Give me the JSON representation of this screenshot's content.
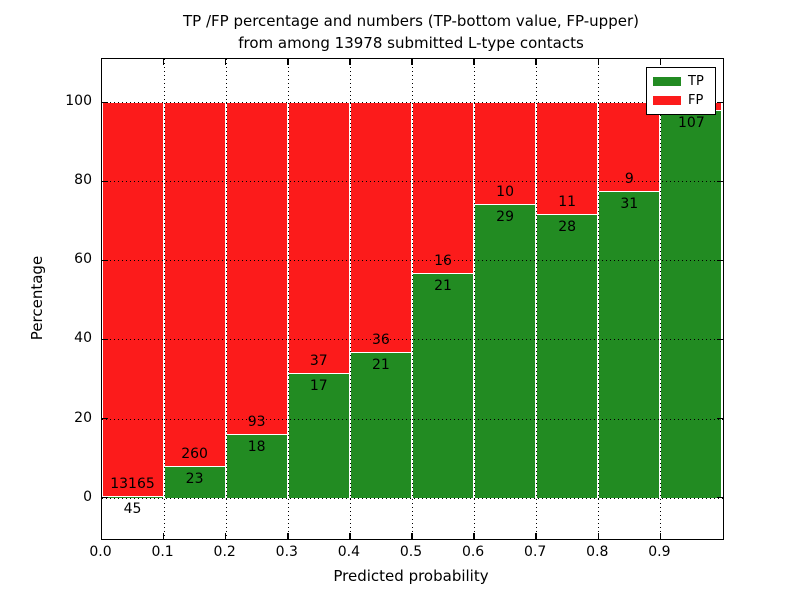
{
  "chart_data": {
    "type": "bar",
    "stacked": true,
    "title_line1": "TP /FP percentage and numbers (TP-bottom value, FP-upper)",
    "title_line2": "from among 13978 submitted L-type contacts",
    "xlabel": "Predicted probability",
    "ylabel": "Percentage",
    "legend_position": "upper right",
    "grid": "dotted",
    "xlim": [
      0.0,
      1.0
    ],
    "ylim": [
      -10.5,
      111
    ],
    "x_ticks": [
      0.0,
      0.1,
      0.2,
      0.3,
      0.4,
      0.5,
      0.6,
      0.7,
      0.8,
      0.9
    ],
    "x_tick_labels": [
      "0.0",
      "0.1",
      "0.2",
      "0.3",
      "0.4",
      "0.5",
      "0.6",
      "0.7",
      "0.8",
      "0.9"
    ],
    "y_ticks": [
      0,
      20,
      40,
      60,
      80,
      100
    ],
    "y_tick_labels": [
      "0",
      "20",
      "40",
      "60",
      "80",
      "100"
    ],
    "bars": [
      {
        "x_start": 0.0,
        "x_end": 0.1,
        "tp": 45,
        "fp": 13165,
        "tp_pct": 0.34
      },
      {
        "x_start": 0.1,
        "x_end": 0.2,
        "tp": 23,
        "fp": 260,
        "tp_pct": 8.1
      },
      {
        "x_start": 0.2,
        "x_end": 0.3,
        "tp": 18,
        "fp": 93,
        "tp_pct": 16.2
      },
      {
        "x_start": 0.3,
        "x_end": 0.4,
        "tp": 17,
        "fp": 37,
        "tp_pct": 31.5
      },
      {
        "x_start": 0.4,
        "x_end": 0.5,
        "tp": 21,
        "fp": 36,
        "tp_pct": 36.8
      },
      {
        "x_start": 0.5,
        "x_end": 0.6,
        "tp": 21,
        "fp": 16,
        "tp_pct": 56.8
      },
      {
        "x_start": 0.6,
        "x_end": 0.7,
        "tp": 29,
        "fp": 10,
        "tp_pct": 74.4
      },
      {
        "x_start": 0.7,
        "x_end": 0.8,
        "tp": 28,
        "fp": 11,
        "tp_pct": 71.8
      },
      {
        "x_start": 0.8,
        "x_end": 0.9,
        "tp": 31,
        "fp": 9,
        "tp_pct": 77.5
      },
      {
        "x_start": 0.9,
        "x_end": 1.0,
        "tp": 107,
        "fp": null,
        "tp_pct": 98.2
      }
    ],
    "legend": [
      {
        "label": "TP",
        "color": "#228B22"
      },
      {
        "label": "FP",
        "color": "#FC1B1B"
      }
    ],
    "colors": {
      "tp": "#228B22",
      "fp": "#FC1B1B",
      "grid": "#000000",
      "background": "#FFFFFF"
    }
  }
}
